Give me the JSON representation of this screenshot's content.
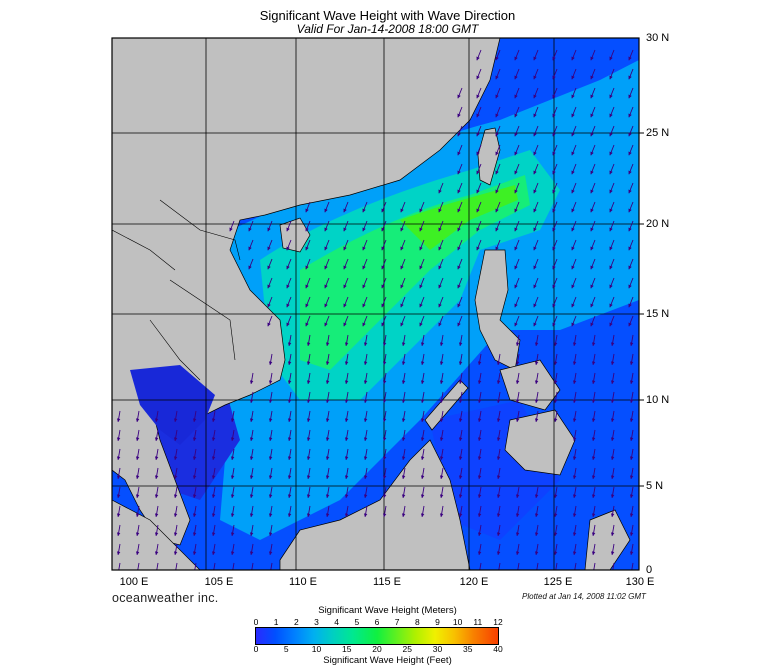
{
  "title": "Significant Wave Height with Wave Direction",
  "subtitle": "Valid For Jan-14-2008 18:00 GMT",
  "map": {
    "lon_range": [
      100,
      130
    ],
    "lat_range": [
      0,
      30
    ],
    "lat_labels": [
      "30 N",
      "25 N",
      "20 N",
      "15 N",
      "10 N",
      "5 N",
      "0"
    ],
    "lon_labels": [
      "100 E",
      "105 E",
      "110 E",
      "115 E",
      "120 E",
      "125 E",
      "130 E"
    ],
    "land_color": "#c0c0c0",
    "arrow_direction": "toward south-southwest",
    "max_wave_region": "Luzon Strait / northern South China Sea"
  },
  "brand": "oceanweather inc.",
  "plotted": "Plotted at Jan 14, 2008 11:02 GMT",
  "colorbar": {
    "title_meters": "Significant Wave Height (Meters)",
    "title_feet": "Significant Wave Height (Feet)",
    "ticks_meters": [
      "0",
      "1",
      "2",
      "3",
      "4",
      "5",
      "6",
      "7",
      "8",
      "9",
      "10",
      "11",
      "12"
    ],
    "ticks_feet": [
      "0",
      "5",
      "10",
      "15",
      "20",
      "25",
      "30",
      "35",
      "40"
    ]
  }
}
